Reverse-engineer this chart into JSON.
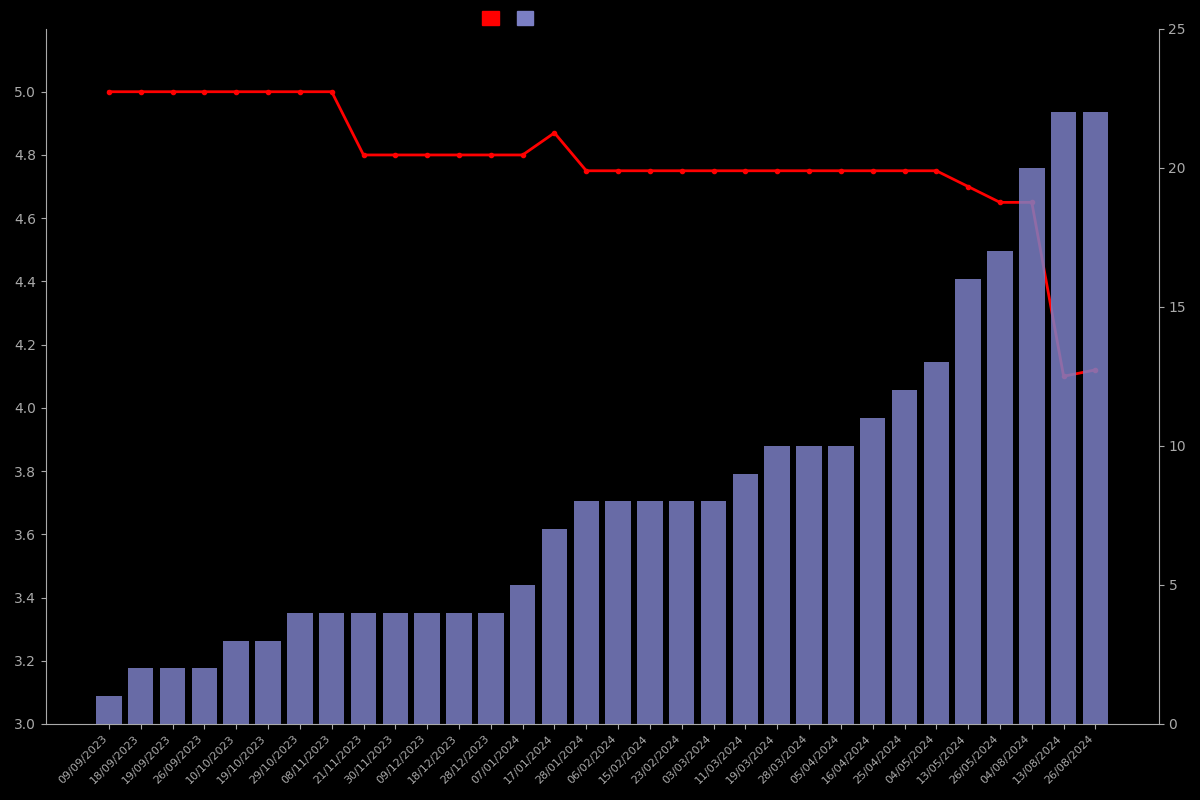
{
  "dates": [
    "09/09/2023",
    "18/09/2023",
    "19/09/2023",
    "26/09/2023",
    "10/10/2023",
    "19/10/2023",
    "29/10/2023",
    "08/11/2023",
    "21/11/2023",
    "30/11/2023",
    "09/12/2023",
    "18/12/2023",
    "28/12/2023",
    "07/01/2024",
    "17/01/2024",
    "28/01/2024",
    "06/02/2024",
    "15/02/2024",
    "23/02/2024",
    "03/03/2024",
    "11/03/2024",
    "19/03/2024",
    "28/03/2024",
    "05/04/2024",
    "16/04/2024",
    "25/04/2024",
    "04/05/2024",
    "13/05/2024",
    "26/05/2024",
    "04/08/2024",
    "13/08/2024",
    "26/08/2024"
  ],
  "bar_counts": [
    1,
    2,
    2,
    2,
    3,
    3,
    4,
    4,
    4,
    4,
    4,
    4,
    4,
    5,
    7,
    8,
    8,
    8,
    8,
    8,
    9,
    10,
    10,
    10,
    11,
    12,
    13,
    16,
    17,
    20,
    22,
    22
  ],
  "line_values": [
    5.0,
    5.0,
    5.0,
    5.0,
    5.0,
    5.0,
    5.0,
    5.0,
    4.8,
    4.8,
    4.8,
    4.8,
    4.8,
    4.8,
    4.87,
    4.75,
    4.75,
    4.75,
    4.75,
    4.75,
    4.75,
    4.75,
    4.75,
    4.75,
    4.75,
    4.75,
    4.75,
    4.7,
    4.65,
    4.65,
    4.1,
    4.12
  ],
  "bar_color": "#7b7fc4",
  "line_color": "#ff0000",
  "background_color": "#000000",
  "text_color": "#aaaaaa",
  "left_ylim": [
    3.0,
    5.2
  ],
  "right_ylim": [
    0,
    25
  ],
  "left_yticks": [
    3.0,
    3.2,
    3.4,
    3.6,
    3.8,
    4.0,
    4.2,
    4.4,
    4.6,
    4.8,
    5.0
  ],
  "right_yticks": [
    0,
    5,
    10,
    15,
    20,
    25
  ]
}
